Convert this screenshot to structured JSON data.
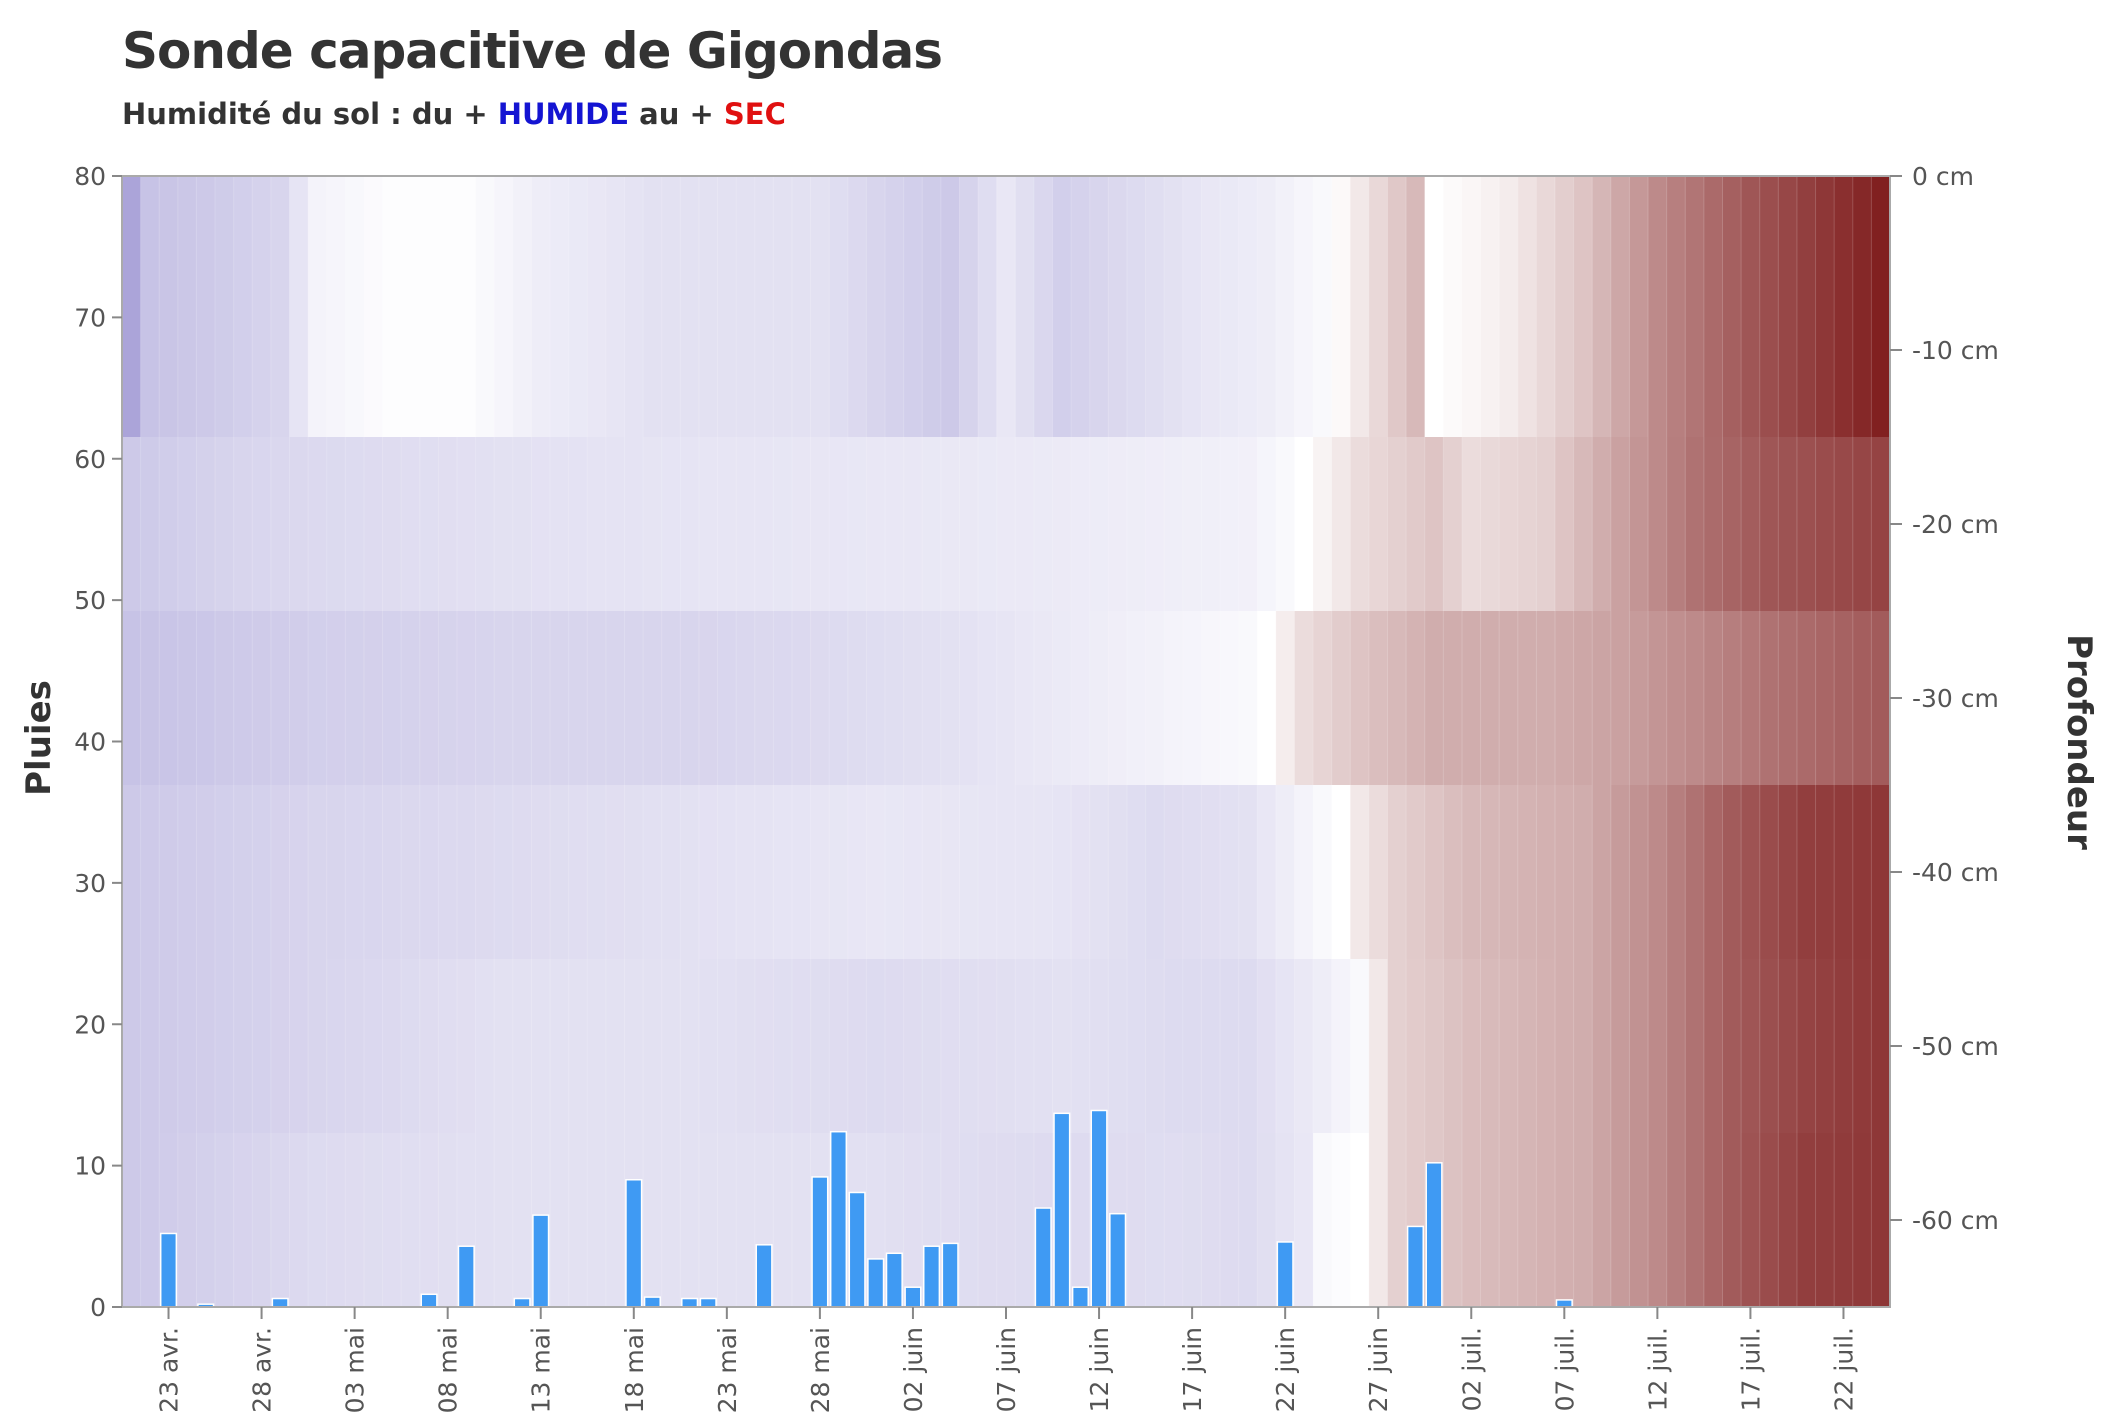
{
  "title": "Sonde capacitive de Gigondas",
  "subtitle": {
    "prefix": "Humidité du sol : du + ",
    "wet_word": "HUMIDE",
    "middle": " au + ",
    "dry_word": "SEC"
  },
  "colors": {
    "wet": "#1414d2",
    "dry": "#e01010",
    "rain_bar": "#3f9af3",
    "heat_wet": "#8f86cc",
    "heat_mid": "#ffffff",
    "heat_dry": "#7a1414"
  },
  "chart_data": {
    "type": "heatmap",
    "left_axis": {
      "title": "Pluies",
      "range": [
        0,
        80
      ],
      "ticks": [
        "0",
        "10",
        "20",
        "30",
        "40",
        "50",
        "60",
        "70",
        "80"
      ]
    },
    "right_axis": {
      "title": "Profondeur",
      "range_cm": [
        -65,
        0
      ],
      "ticks": [
        "0 cm",
        "-10 cm",
        "-20 cm",
        "-30 cm",
        "-40 cm",
        "-50 cm",
        "-60 cm"
      ]
    },
    "x_axis": {
      "start_date": "2020-04-20",
      "day_count": 95,
      "tick_days": [
        3,
        8,
        13,
        18,
        23,
        28,
        33,
        38,
        43,
        48,
        53,
        58,
        63,
        68,
        73,
        78,
        83,
        88,
        93
      ],
      "tick_labels": [
        "23 avr.",
        "28 avr.",
        "03 mai",
        "08 mai",
        "13 mai",
        "18 mai",
        "23 mai",
        "28 mai",
        "02 juin",
        "07 juin",
        "12 juin",
        "17 juin",
        "22 juin",
        "27 juin",
        "02 juil.",
        "07 juil.",
        "12 juil.",
        "17 juil.",
        "22 juil."
      ]
    },
    "depth_layers_cm": [
      {
        "label": "0 à -15 cm",
        "top": 0,
        "bottom": -15
      },
      {
        "label": "-15 à -25 cm",
        "top": -15,
        "bottom": -25
      },
      {
        "label": "-25 à -35 cm",
        "top": -25,
        "bottom": -35
      },
      {
        "label": "-35 à -45 cm",
        "top": -35,
        "bottom": -45
      },
      {
        "label": "-45 à -55 cm",
        "top": -45,
        "bottom": -55
      },
      {
        "label": "-55 à -65 cm",
        "top": -55,
        "bottom": -65
      }
    ],
    "moisture_scale": "négatif = plus humide (bleu), positif = plus sec (rouge)",
    "moisture_keyframes": [
      [
        [
          0,
          -0.75
        ],
        [
          1,
          -0.5
        ],
        [
          4,
          -0.45
        ],
        [
          8,
          -0.35
        ],
        [
          10,
          -0.1
        ],
        [
          14,
          -0.02
        ],
        [
          18,
          -0.02
        ],
        [
          19,
          -0.05
        ],
        [
          22,
          -0.15
        ],
        [
          28,
          -0.25
        ],
        [
          37,
          -0.25
        ],
        [
          40,
          -0.35
        ],
        [
          44,
          -0.45
        ],
        [
          47,
          -0.2
        ],
        [
          50,
          -0.4
        ],
        [
          54,
          -0.3
        ],
        [
          58,
          -0.2
        ],
        [
          61,
          -0.15
        ],
        [
          64,
          -0.05
        ],
        [
          66,
          0.1
        ],
        [
          69,
          0.3
        ],
        [
          70,
          0.0
        ],
        [
          74,
          0.08
        ],
        [
          78,
          0.25
        ],
        [
          82,
          0.5
        ],
        [
          87,
          0.72
        ],
        [
          91,
          0.85
        ],
        [
          94,
          0.95
        ]
      ],
      [
        [
          0,
          -0.45
        ],
        [
          6,
          -0.35
        ],
        [
          12,
          -0.3
        ],
        [
          20,
          -0.25
        ],
        [
          30,
          -0.22
        ],
        [
          40,
          -0.2
        ],
        [
          48,
          -0.18
        ],
        [
          54,
          -0.15
        ],
        [
          60,
          -0.12
        ],
        [
          62,
          -0.05
        ],
        [
          64,
          0.05
        ],
        [
          66,
          0.15
        ],
        [
          70,
          0.25
        ],
        [
          72,
          0.15
        ],
        [
          76,
          0.2
        ],
        [
          80,
          0.4
        ],
        [
          84,
          0.6
        ],
        [
          88,
          0.72
        ],
        [
          94,
          0.8
        ]
      ],
      [
        [
          0,
          -0.5
        ],
        [
          10,
          -0.4
        ],
        [
          20,
          -0.35
        ],
        [
          30,
          -0.35
        ],
        [
          38,
          -0.3
        ],
        [
          44,
          -0.25
        ],
        [
          52,
          -0.15
        ],
        [
          56,
          -0.1
        ],
        [
          60,
          -0.05
        ],
        [
          61,
          0.0
        ],
        [
          63,
          0.15
        ],
        [
          66,
          0.25
        ],
        [
          70,
          0.35
        ],
        [
          76,
          0.35
        ],
        [
          80,
          0.4
        ],
        [
          84,
          0.5
        ],
        [
          88,
          0.6
        ],
        [
          94,
          0.7
        ]
      ],
      [
        [
          0,
          -0.45
        ],
        [
          10,
          -0.35
        ],
        [
          20,
          -0.3
        ],
        [
          30,
          -0.25
        ],
        [
          40,
          -0.2
        ],
        [
          50,
          -0.22
        ],
        [
          55,
          -0.3
        ],
        [
          60,
          -0.25
        ],
        [
          63,
          -0.1
        ],
        [
          65,
          0.0
        ],
        [
          66,
          0.1
        ],
        [
          68,
          0.2
        ],
        [
          72,
          0.3
        ],
        [
          78,
          0.35
        ],
        [
          82,
          0.5
        ],
        [
          86,
          0.7
        ],
        [
          90,
          0.82
        ],
        [
          94,
          0.85
        ]
      ],
      [
        [
          0,
          -0.45
        ],
        [
          10,
          -0.35
        ],
        [
          20,
          -0.25
        ],
        [
          30,
          -0.25
        ],
        [
          40,
          -0.3
        ],
        [
          50,
          -0.25
        ],
        [
          56,
          -0.3
        ],
        [
          60,
          -0.3
        ],
        [
          64,
          -0.15
        ],
        [
          66,
          -0.05
        ],
        [
          67,
          0.1
        ],
        [
          68,
          0.2
        ],
        [
          72,
          0.28
        ],
        [
          78,
          0.35
        ],
        [
          82,
          0.5
        ],
        [
          86,
          0.7
        ],
        [
          90,
          0.8
        ],
        [
          94,
          0.85
        ]
      ],
      [
        [
          0,
          -0.45
        ],
        [
          10,
          -0.3
        ],
        [
          20,
          -0.25
        ],
        [
          30,
          -0.25
        ],
        [
          38,
          -0.25
        ],
        [
          44,
          -0.28
        ],
        [
          50,
          -0.3
        ],
        [
          56,
          -0.28
        ],
        [
          60,
          -0.3
        ],
        [
          63,
          -0.2
        ],
        [
          64,
          -0.05
        ],
        [
          66,
          0.0
        ],
        [
          67,
          0.1
        ],
        [
          68,
          0.2
        ],
        [
          72,
          0.28
        ],
        [
          78,
          0.35
        ],
        [
          82,
          0.5
        ],
        [
          86,
          0.7
        ],
        [
          90,
          0.82
        ],
        [
          94,
          0.85
        ]
      ]
    ],
    "rain_mm": [
      {
        "day": 2,
        "value": 5.2
      },
      {
        "day": 4,
        "value": 0.2
      },
      {
        "day": 8,
        "value": 0.6
      },
      {
        "day": 16,
        "value": 0.9
      },
      {
        "day": 18,
        "value": 4.3
      },
      {
        "day": 21,
        "value": 0.6
      },
      {
        "day": 22,
        "value": 6.5
      },
      {
        "day": 27,
        "value": 9.0
      },
      {
        "day": 28,
        "value": 0.7
      },
      {
        "day": 30,
        "value": 0.6
      },
      {
        "day": 31,
        "value": 0.6
      },
      {
        "day": 34,
        "value": 4.4
      },
      {
        "day": 37,
        "value": 9.2
      },
      {
        "day": 38,
        "value": 12.4
      },
      {
        "day": 39,
        "value": 8.1
      },
      {
        "day": 40,
        "value": 3.4
      },
      {
        "day": 41,
        "value": 3.8
      },
      {
        "day": 42,
        "value": 1.4
      },
      {
        "day": 43,
        "value": 4.3
      },
      {
        "day": 44,
        "value": 4.5
      },
      {
        "day": 49,
        "value": 7.0
      },
      {
        "day": 50,
        "value": 13.7
      },
      {
        "day": 51,
        "value": 1.4
      },
      {
        "day": 52,
        "value": 13.9
      },
      {
        "day": 53,
        "value": 6.6
      },
      {
        "day": 62,
        "value": 4.6
      },
      {
        "day": 69,
        "value": 5.7
      },
      {
        "day": 70,
        "value": 10.2
      },
      {
        "day": 77,
        "value": 0.5
      }
    ]
  }
}
